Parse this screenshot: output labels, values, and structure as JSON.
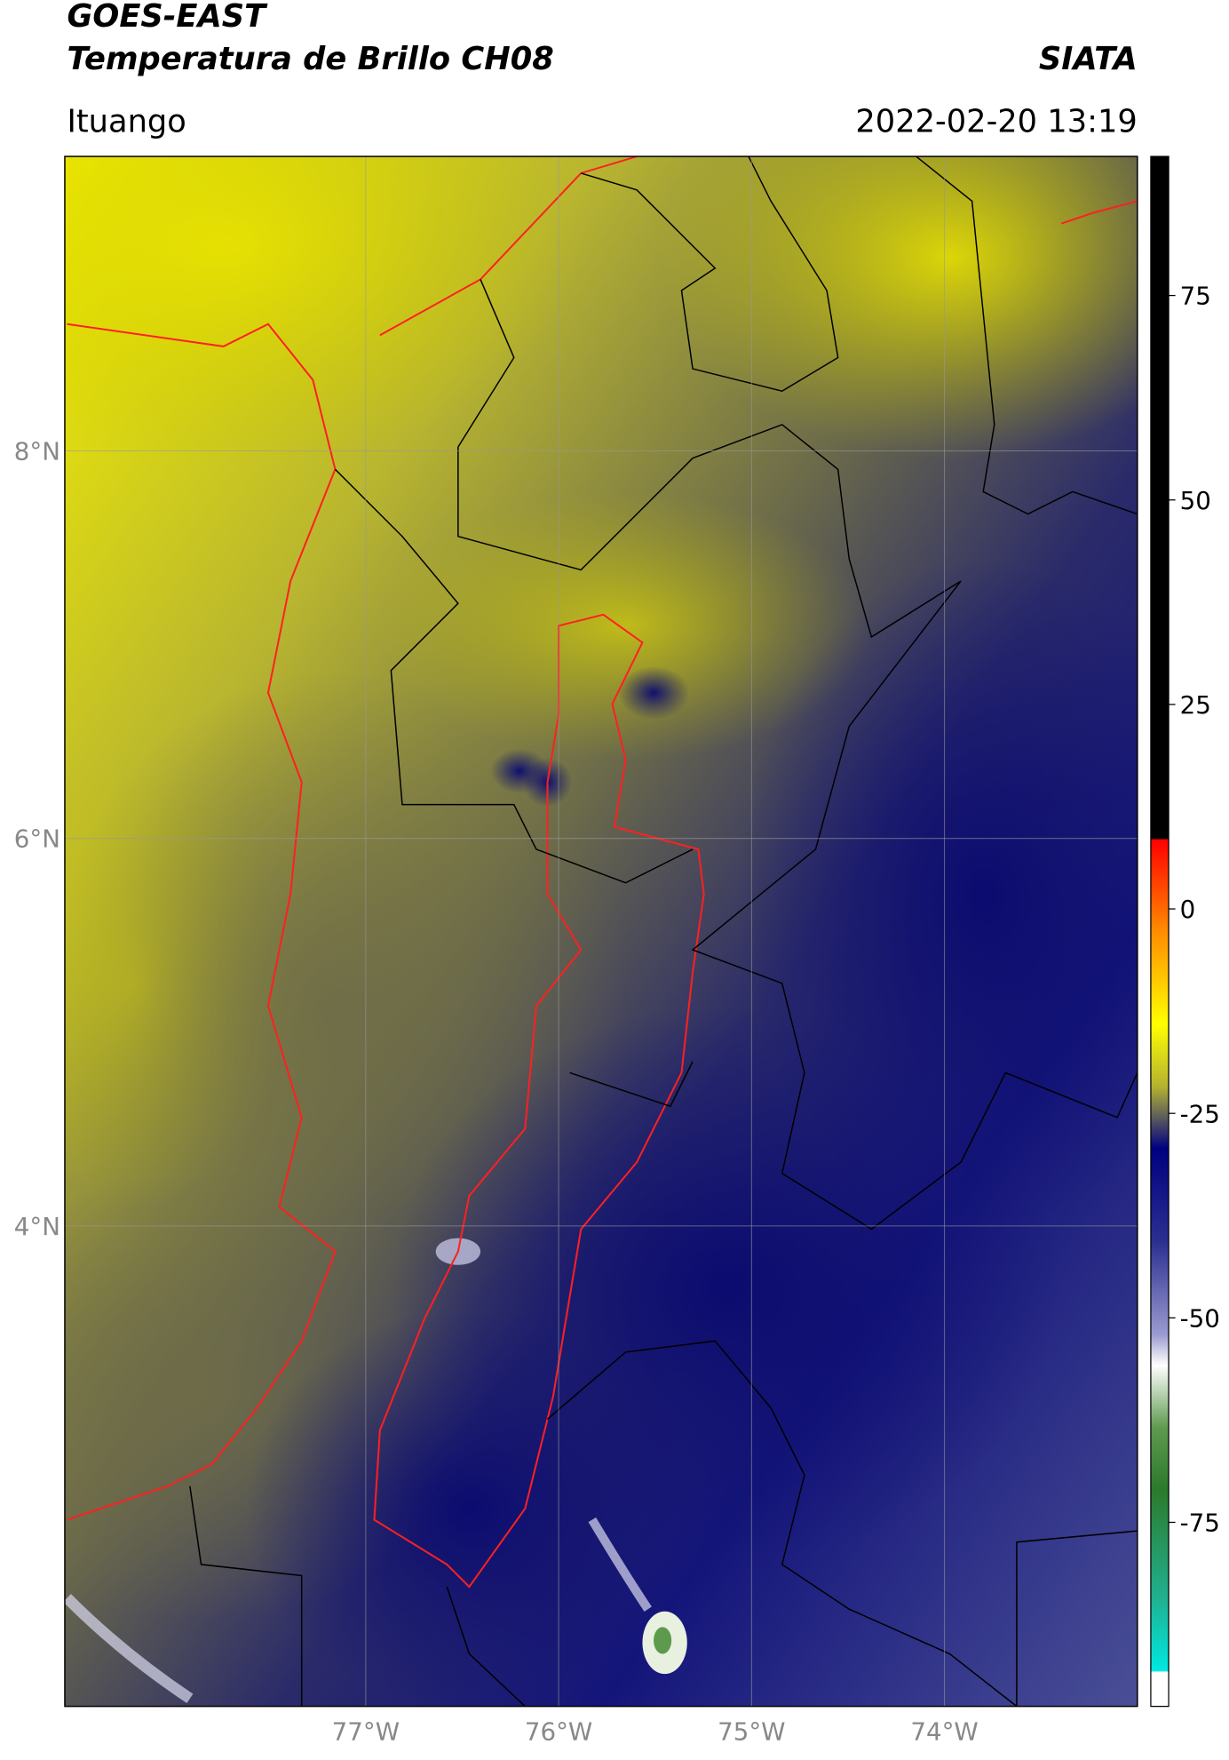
{
  "header": {
    "title": "GOES-EAST",
    "subtitle": "Temperatura de Brillo CH08",
    "source": "SIATA",
    "region": "Ituango",
    "datetime": "2022-02-20 13:19"
  },
  "map": {
    "xlim": [
      -78.56,
      -73.0
    ],
    "ylim": [
      1.52,
      9.52
    ],
    "xticks": [
      {
        "value": -77,
        "label": "77°W"
      },
      {
        "value": -76,
        "label": "76°W"
      },
      {
        "value": -75,
        "label": "75°W"
      },
      {
        "value": -74,
        "label": "74°W"
      }
    ],
    "yticks": [
      {
        "value": 8,
        "label": "8°N"
      },
      {
        "value": 6,
        "label": "6°N"
      },
      {
        "value": 4,
        "label": "4°N"
      }
    ],
    "grid": true
  },
  "colorbar": {
    "ylim": [
      -97.5,
      92
    ],
    "yticks": [
      -75,
      -50,
      -25,
      0,
      25,
      50,
      75
    ]
  }
}
